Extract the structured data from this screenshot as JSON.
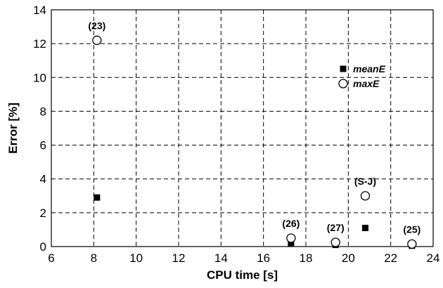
{
  "chart_data": {
    "type": "scatter",
    "title": "",
    "xlabel": "CPU time [s]",
    "ylabel": "Error [%]",
    "xlim": [
      6,
      24
    ],
    "ylim": [
      0,
      14
    ],
    "xticks": [
      6,
      8,
      10,
      12,
      14,
      16,
      18,
      20,
      22,
      24
    ],
    "yticks": [
      0,
      2,
      4,
      6,
      8,
      10,
      12,
      14
    ],
    "grid": true,
    "legend_position": "top-right",
    "series": [
      {
        "name": "meanE",
        "marker": "filled-square",
        "points": [
          {
            "x": 8.15,
            "y": 2.9
          },
          {
            "x": 17.3,
            "y": 0.2
          },
          {
            "x": 19.4,
            "y": 0.1
          },
          {
            "x": 20.8,
            "y": 1.1
          },
          {
            "x": 23.0,
            "y": 0.05
          }
        ]
      },
      {
        "name": "maxE",
        "marker": "open-circle",
        "points": [
          {
            "x": 8.15,
            "y": 12.2
          },
          {
            "x": 17.3,
            "y": 0.5
          },
          {
            "x": 19.4,
            "y": 0.25
          },
          {
            "x": 20.8,
            "y": 3.0
          },
          {
            "x": 23.0,
            "y": 0.15
          }
        ]
      }
    ],
    "annotations": [
      {
        "text": "(23)",
        "x": 8.15,
        "y": 12.2
      },
      {
        "text": "(26)",
        "x": 17.3,
        "y": 0.5
      },
      {
        "text": "(27)",
        "x": 19.4,
        "y": 0.25
      },
      {
        "text": "(S-J)",
        "x": 20.8,
        "y": 3.0
      },
      {
        "text": "(25)",
        "x": 23.0,
        "y": 0.15
      }
    ]
  }
}
